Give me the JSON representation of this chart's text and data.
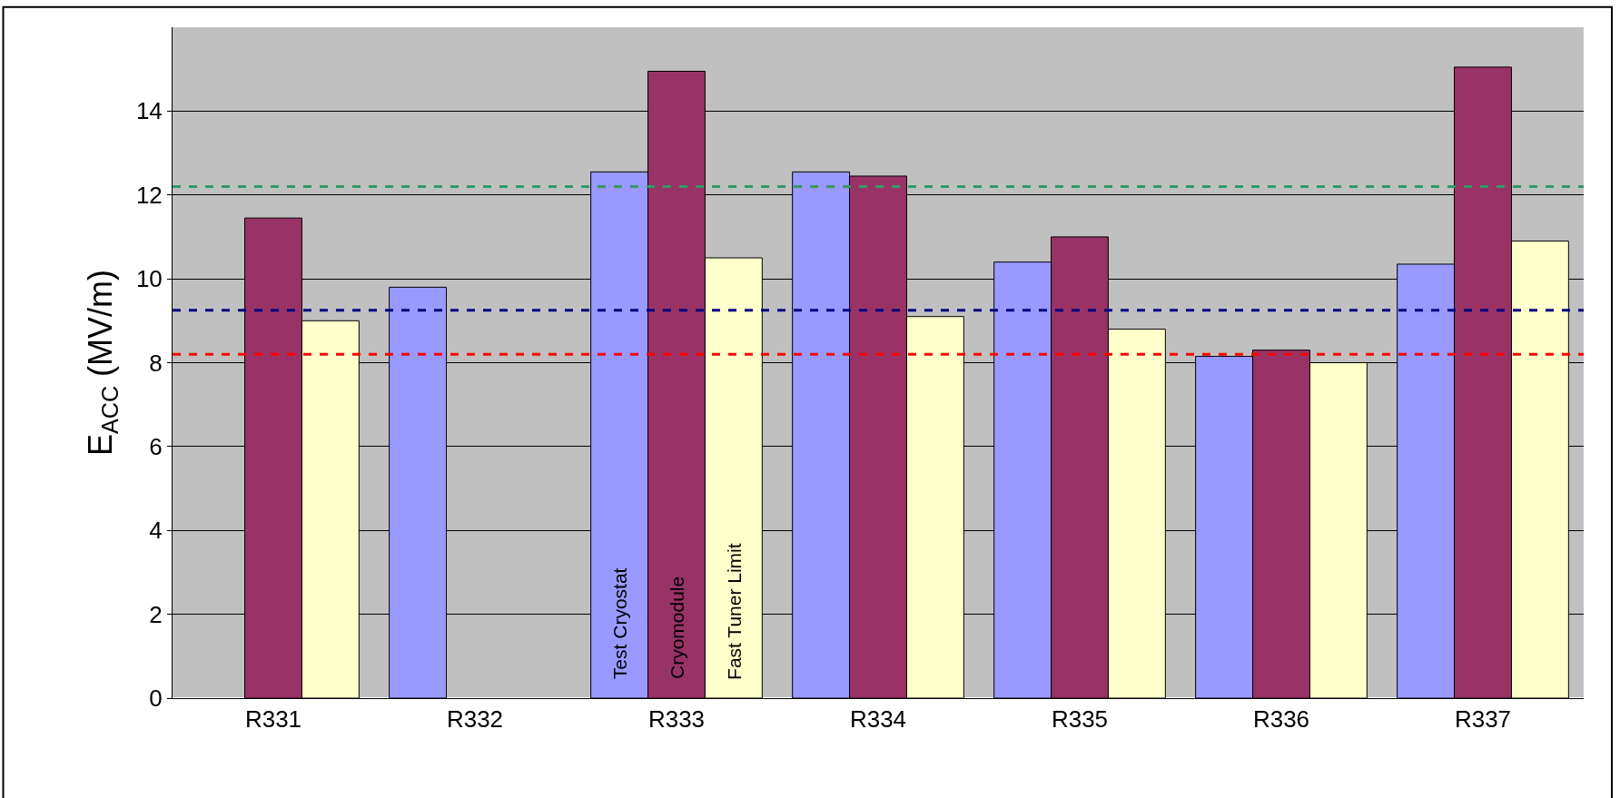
{
  "chart_data": {
    "type": "bar",
    "ylabel": "E$_{ACC}$ (MV/m)",
    "categories": [
      "R331",
      "R332",
      "R333",
      "R334",
      "R335",
      "R336",
      "R337"
    ],
    "series": [
      {
        "name": "Test Cryostat",
        "color": "#9999ff",
        "values": [
          null,
          9.8,
          12.55,
          12.55,
          10.4,
          8.15,
          10.35
        ]
      },
      {
        "name": "Cryomodule",
        "color": "#993366",
        "values": [
          11.45,
          null,
          14.95,
          12.45,
          11.0,
          8.3,
          15.05
        ]
      },
      {
        "name": "Fast Tuner Limit",
        "color": "#ffffcc",
        "values": [
          9.0,
          null,
          10.5,
          9.1,
          8.8,
          8.0,
          10.9
        ]
      }
    ],
    "ylim": [
      0,
      16
    ],
    "yticks": [
      0,
      2,
      4,
      6,
      8,
      10,
      12,
      14
    ],
    "grid": "y",
    "legend": false,
    "ref_lines": [
      {
        "axis": "y",
        "value": 12.2,
        "color": "#339966",
        "line_style": "dashed"
      },
      {
        "axis": "y",
        "value": 9.25,
        "color": "#000080",
        "line_style": "dashed"
      },
      {
        "axis": "y",
        "value": 8.2,
        "color": "#ff0000",
        "line_style": "dashed"
      }
    ]
  }
}
